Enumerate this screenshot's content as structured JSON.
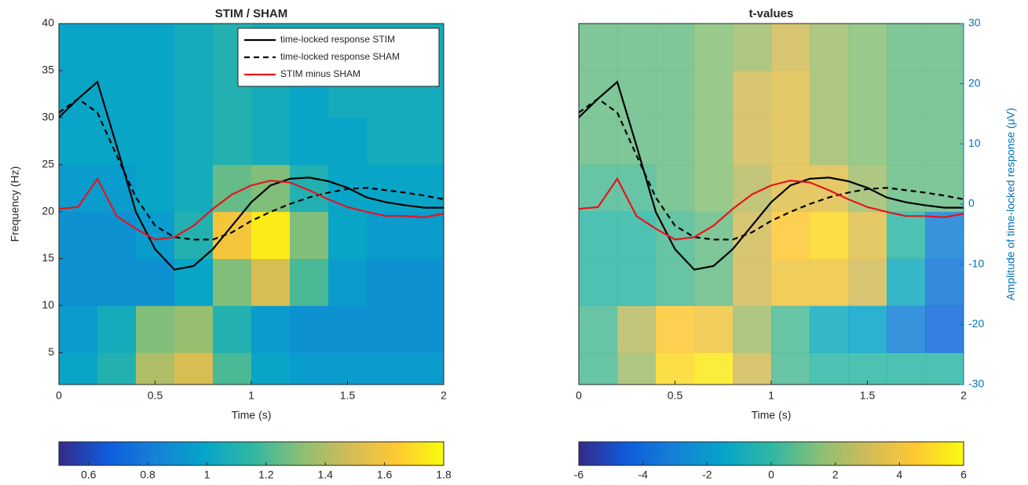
{
  "chart_data": [
    {
      "type": "heatmap",
      "title": "STIM / SHAM",
      "x_label": "Time (s)",
      "y_label": "Frequency (Hz)",
      "xlim": [
        0,
        2
      ],
      "xticks": [
        0,
        0.5,
        1,
        1.5,
        2
      ],
      "ylim": [
        1.6,
        40
      ],
      "yticks": [
        5,
        10,
        15,
        20,
        25,
        30,
        35,
        40
      ],
      "y2lim": [
        -30,
        30
      ],
      "time_edges": [
        0,
        0.2,
        0.4,
        0.6,
        0.8,
        1.0,
        1.2,
        1.4,
        1.6,
        1.8,
        2.0
      ],
      "freq_edges": [
        1.6,
        5,
        10,
        15,
        20,
        25,
        30,
        35,
        40
      ],
      "z": [
        [
          1.0,
          1.1,
          1.4,
          1.5,
          1.2,
          1.0,
          0.95,
          0.95,
          0.95,
          0.95
        ],
        [
          0.95,
          1.05,
          1.3,
          1.35,
          1.1,
          0.95,
          0.9,
          0.9,
          0.9,
          0.9
        ],
        [
          0.9,
          0.9,
          0.9,
          1.0,
          1.3,
          1.5,
          1.2,
          0.95,
          0.9,
          0.9
        ],
        [
          0.9,
          0.9,
          0.95,
          1.1,
          1.6,
          1.75,
          1.3,
          1.0,
          0.95,
          0.95
        ],
        [
          0.95,
          0.95,
          1.0,
          1.05,
          1.25,
          1.3,
          1.1,
          1.0,
          1.0,
          1.0
        ],
        [
          1.0,
          1.0,
          1.0,
          1.05,
          1.1,
          1.05,
          1.0,
          1.0,
          1.05,
          1.05
        ],
        [
          1.0,
          1.0,
          1.0,
          1.05,
          1.1,
          1.05,
          1.0,
          1.05,
          1.05,
          1.05
        ],
        [
          1.0,
          1.0,
          1.0,
          1.05,
          1.1,
          1.05,
          1.05,
          1.05,
          1.05,
          1.05
        ]
      ],
      "clim": [
        0.5,
        1.8
      ],
      "cticks": [
        0.6,
        0.8,
        1,
        1.2,
        1.4,
        1.6,
        1.8
      ],
      "colormap": [
        "#352a87",
        "#0f5cdd",
        "#1481d6",
        "#06a4ca",
        "#2eb7a4",
        "#87bf77",
        "#d1bb59",
        "#fec832",
        "#f9fb0e"
      ],
      "legend": "upper right",
      "x": [
        0,
        0.1,
        0.2,
        0.3,
        0.4,
        0.5,
        0.6,
        0.7,
        0.8,
        0.9,
        1.0,
        1.1,
        1.2,
        1.3,
        1.4,
        1.5,
        1.6,
        1.7,
        1.8,
        1.9,
        2.0
      ],
      "series": [
        {
          "name": "time-locked response STIM",
          "color": "#000000",
          "dash": false,
          "values": [
            14.4,
            17.5,
            20.3,
            9.7,
            -1.3,
            -7.5,
            -10.9,
            -10.3,
            -7.5,
            -3.6,
            0.3,
            3.1,
            4.2,
            4.4,
            3.8,
            2.7,
            1.1,
            0.3,
            -0.2,
            -0.6,
            -0.6
          ]
        },
        {
          "name": "time-locked response SHAM",
          "color": "#000000",
          "dash": true,
          "values": [
            15.2,
            17.5,
            15.2,
            8.1,
            1.1,
            -3.6,
            -5.5,
            -5.9,
            -5.9,
            -4.7,
            -2.8,
            -1.3,
            0,
            1.1,
            1.9,
            2.5,
            2.7,
            2.3,
            1.9,
            1.4,
            0.8
          ]
        },
        {
          "name": "STIM minus SHAM",
          "color": "#e8141c",
          "dash": false,
          "values": [
            -0.8,
            -0.5,
            4.2,
            -2,
            -4.1,
            -5.9,
            -5.5,
            -3.6,
            -0.8,
            1.6,
            3.1,
            3.9,
            3.6,
            2.3,
            0.8,
            -0.5,
            -1.3,
            -2,
            -2,
            -2.2,
            -1.6
          ]
        }
      ]
    },
    {
      "type": "heatmap",
      "title": "t-values",
      "x_label": "Time (s)",
      "y2_label": "Amplitude of time-locked response (μV)",
      "xlim": [
        0,
        2
      ],
      "xticks": [
        0,
        0.5,
        1,
        1.5,
        2
      ],
      "ylim": [
        1.6,
        40
      ],
      "y2lim": [
        -30,
        30
      ],
      "y2ticks": [
        -30,
        -20,
        -10,
        0,
        10,
        20,
        30
      ],
      "y2color": "#0072bd",
      "time_edges": [
        0,
        0.2,
        0.4,
        0.6,
        0.8,
        1.0,
        1.2,
        1.4,
        1.6,
        1.8,
        2.0
      ],
      "freq_edges": [
        1.6,
        5,
        10,
        15,
        20,
        25,
        30,
        35,
        40
      ],
      "z": [
        [
          0.5,
          2,
          5,
          5.5,
          3,
          0.5,
          0,
          0,
          0,
          0
        ],
        [
          0.5,
          2.5,
          4.5,
          4,
          2,
          0.5,
          -1,
          -1.5,
          -3,
          -4
        ],
        [
          0,
          0,
          0.5,
          1,
          3,
          4,
          4,
          3,
          -1,
          -3.5
        ],
        [
          0,
          0,
          0.5,
          1,
          3,
          4.5,
          5,
          3.5,
          0,
          -3
        ],
        [
          0.5,
          0.5,
          1,
          1.5,
          2.5,
          3.5,
          3.5,
          2,
          1,
          1
        ],
        [
          1,
          1,
          1,
          1.5,
          3,
          3.5,
          2,
          1.5,
          1,
          1
        ],
        [
          1,
          1,
          1,
          1.5,
          3,
          3.5,
          2,
          1.5,
          1,
          1
        ],
        [
          1,
          1,
          1,
          1.5,
          2,
          3,
          2,
          1.5,
          1,
          1
        ]
      ],
      "clim": [
        -6,
        6
      ],
      "cticks": [
        -6,
        -4,
        -2,
        0,
        2,
        4,
        6
      ],
      "colormap": [
        "#352a87",
        "#0f5cdd",
        "#1481d6",
        "#06a4ca",
        "#2eb7a4",
        "#87bf77",
        "#d1bb59",
        "#fec832",
        "#f9fb0e"
      ],
      "x": [
        0,
        0.1,
        0.2,
        0.3,
        0.4,
        0.5,
        0.6,
        0.7,
        0.8,
        0.9,
        1.0,
        1.1,
        1.2,
        1.3,
        1.4,
        1.5,
        1.6,
        1.7,
        1.8,
        1.9,
        2.0
      ],
      "series": [
        {
          "name": "time-locked response STIM",
          "color": "#000000",
          "dash": false,
          "values": [
            14.4,
            17.5,
            20.3,
            9.7,
            -1.3,
            -7.5,
            -10.9,
            -10.3,
            -7.5,
            -3.6,
            0.3,
            3.1,
            4.2,
            4.4,
            3.8,
            2.7,
            1.1,
            0.3,
            -0.2,
            -0.6,
            -0.6
          ]
        },
        {
          "name": "time-locked response SHAM",
          "color": "#000000",
          "dash": true,
          "values": [
            15.2,
            17.5,
            15.2,
            8.1,
            1.1,
            -3.6,
            -5.5,
            -5.9,
            -5.9,
            -4.7,
            -2.8,
            -1.3,
            0,
            1.1,
            1.9,
            2.5,
            2.7,
            2.3,
            1.9,
            1.4,
            0.8
          ]
        },
        {
          "name": "STIM minus SHAM",
          "color": "#e8141c",
          "dash": false,
          "values": [
            -0.8,
            -0.5,
            4.2,
            -2,
            -4.1,
            -5.9,
            -5.5,
            -3.6,
            -0.8,
            1.6,
            3.1,
            3.9,
            3.6,
            2.3,
            0.8,
            -0.5,
            -1.3,
            -2,
            -2,
            -2.2,
            -1.6
          ]
        }
      ]
    }
  ]
}
